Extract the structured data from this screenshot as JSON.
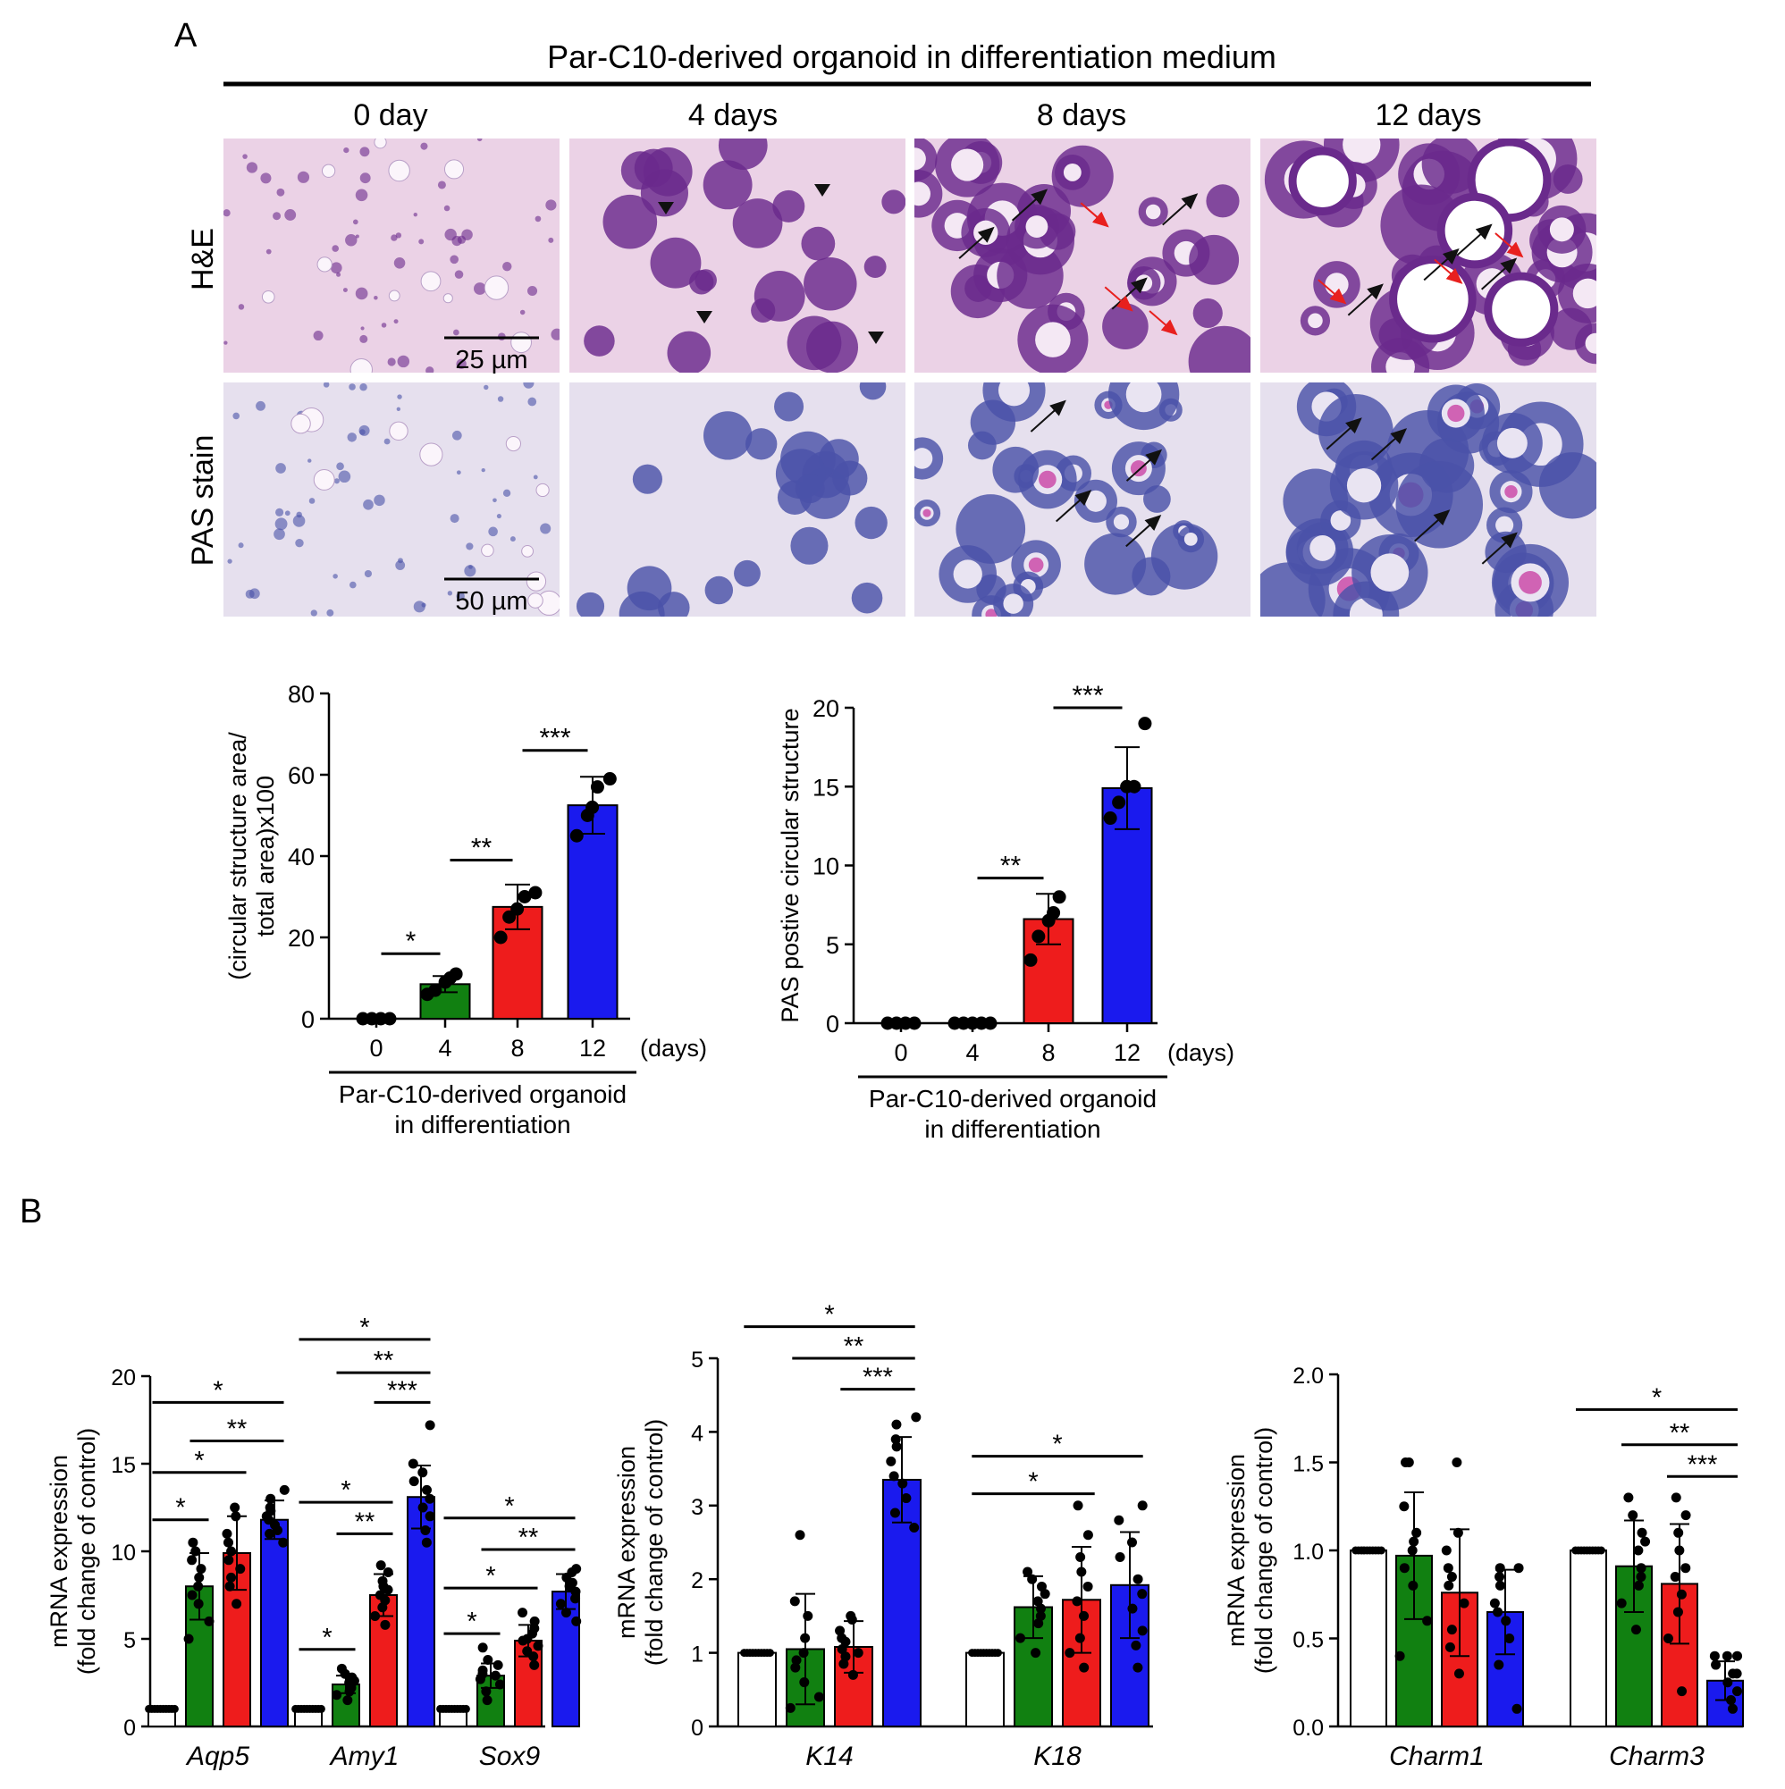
{
  "panel_a": {
    "letter": "A",
    "title": "Par-C10-derived organoid in differentiation medium",
    "columns": [
      "0 day",
      "4 days",
      "8 days",
      "12 days"
    ],
    "rows": [
      {
        "label": "H&E",
        "scale_bar": "25 µm"
      },
      {
        "label": "PAS stain",
        "scale_bar": "50 µm"
      }
    ],
    "stain_colors": {
      "he_background": "#ebd2e6",
      "he_nuclei": "#6a2a8c",
      "pas_background": "#e6e0ee",
      "pas_nuclei": "#4a52a8",
      "pas_lumen": "#c42c9a"
    }
  },
  "panel_b": {
    "letter": "B"
  },
  "colors": {
    "day0": "#ffffff",
    "day4": "#118011",
    "day8": "#ee1c1c",
    "day12": "#1a1aee"
  },
  "chart_data": [
    {
      "id": "circ-area",
      "type": "bar",
      "categories": [
        "0",
        "4",
        "8",
        "12"
      ],
      "values": [
        0,
        8.5,
        27.5,
        52.5
      ],
      "errors": [
        0,
        2,
        5.5,
        7
      ],
      "points": [
        [
          0,
          0,
          0,
          0
        ],
        [
          6,
          7,
          9,
          10,
          11
        ],
        [
          20,
          25,
          27,
          30,
          31
        ],
        [
          45,
          50,
          52,
          57,
          59
        ]
      ],
      "ylabel": "(circular structure area/ total area)x100",
      "ylabel_lines": [
        "(circular structure area/",
        "total area)x100"
      ],
      "ylim": [
        0,
        80
      ],
      "yticks": [
        0,
        20,
        40,
        60,
        80
      ],
      "xunit": "(days)",
      "xgroup_lines": [
        "Par-C10-derived organoid",
        "in differentiation"
      ],
      "significance": [
        {
          "from": 0,
          "to": 1,
          "label": "*",
          "y": 16
        },
        {
          "from": 1,
          "to": 2,
          "label": "**",
          "y": 39
        },
        {
          "from": 2,
          "to": 3,
          "label": "***",
          "y": 66
        }
      ]
    },
    {
      "id": "pas-count",
      "type": "bar",
      "categories": [
        "0",
        "4",
        "8",
        "12"
      ],
      "values": [
        0,
        0,
        6.6,
        14.9
      ],
      "errors": [
        0,
        0,
        1.6,
        2.6
      ],
      "points": [
        [
          0,
          0,
          0,
          0
        ],
        [
          0,
          0,
          0,
          0,
          0
        ],
        [
          4,
          5.5,
          6.5,
          7,
          8
        ],
        [
          13,
          14,
          15,
          15,
          19
        ]
      ],
      "ylabel": "PAS postive circular structure",
      "ylabel_lines": [
        "PAS postive circular structure"
      ],
      "ylim": [
        0,
        20
      ],
      "yticks": [
        0,
        5,
        10,
        15,
        20
      ],
      "xunit": "(days)",
      "xgroup_lines": [
        "Par-C10-derived organoid",
        "in differentiation"
      ],
      "significance": [
        {
          "from": 1,
          "to": 2,
          "label": "**",
          "y": 9.2
        },
        {
          "from": 2,
          "to": 3,
          "label": "***",
          "y": 20
        }
      ]
    },
    {
      "id": "mrna-1",
      "type": "bar",
      "genes": [
        "Aqp5",
        "Amy1",
        "Sox9"
      ],
      "series_keys": [
        "day0",
        "day4",
        "day8",
        "day12"
      ],
      "values": [
        [
          1,
          8,
          9.9,
          11.8
        ],
        [
          1,
          2.4,
          7.5,
          13.1
        ],
        [
          1,
          2.9,
          4.9,
          7.7
        ]
      ],
      "errors": [
        [
          0,
          1.9,
          2.1,
          1.1
        ],
        [
          0,
          0.5,
          1.2,
          1.8
        ],
        [
          0,
          0.7,
          0.9,
          1
        ]
      ],
      "points": [
        [
          [
            1,
            1,
            1,
            1,
            1,
            1,
            1,
            1,
            1,
            1
          ],
          [
            5,
            6,
            7,
            7.5,
            8,
            8.5,
            9,
            9.5,
            10,
            10.5
          ],
          [
            7,
            8,
            8.5,
            9,
            9.5,
            10,
            10.5,
            11,
            12,
            12.5
          ],
          [
            10.5,
            11,
            11.2,
            11.5,
            11.8,
            12,
            12.3,
            12.5,
            13,
            13.5
          ]
        ],
        [
          [
            1,
            1,
            1,
            1,
            1,
            1,
            1,
            1,
            1,
            1
          ],
          [
            1.5,
            1.8,
            2,
            2.2,
            2.4,
            2.5,
            2.6,
            2.8,
            3,
            3.3
          ],
          [
            5.8,
            6.3,
            6.8,
            7.2,
            7.5,
            7.8,
            8,
            8.3,
            8.8,
            9.2
          ],
          [
            10.5,
            11.2,
            12,
            12.5,
            13,
            13.5,
            14,
            14.5,
            15,
            17.2
          ]
        ],
        [
          [
            1,
            1,
            1,
            1,
            1,
            1,
            1,
            1,
            1,
            1
          ],
          [
            1.5,
            2,
            2.4,
            2.7,
            2.9,
            3,
            3.2,
            3.5,
            3.8,
            4.5
          ],
          [
            3.5,
            4,
            4.3,
            4.6,
            4.9,
            5,
            5.3,
            5.6,
            6,
            6.5
          ],
          [
            6,
            6.5,
            7,
            7.3,
            7.7,
            8,
            8.2,
            8.5,
            8.8,
            9
          ]
        ]
      ],
      "ylabel": "mRNA expression (fold change of control)",
      "ylabel_lines": [
        "mRNA expression",
        "(fold change of control)"
      ],
      "ylim": [
        0,
        20
      ],
      "yticks": [
        0,
        5,
        10,
        15,
        20
      ],
      "significance": [
        {
          "g": 0,
          "from": 0,
          "to": 3,
          "label": "*",
          "y": 18.5
        },
        {
          "g": 0,
          "from": 1,
          "to": 3,
          "label": "**",
          "y": 16.3
        },
        {
          "g": 0,
          "from": 0,
          "to": 2,
          "label": "*",
          "y": 14.5
        },
        {
          "g": 0,
          "from": 0,
          "to": 1,
          "label": "*",
          "y": 11.8
        },
        {
          "g": 1,
          "from": 0,
          "to": 3,
          "label": "*",
          "y": 22.1
        },
        {
          "g": 1,
          "from": 1,
          "to": 3,
          "label": "**",
          "y": 20.2
        },
        {
          "g": 1,
          "from": 2,
          "to": 3,
          "label": "***",
          "y": 18.5
        },
        {
          "g": 1,
          "from": 0,
          "to": 2,
          "label": "*",
          "y": 12.8
        },
        {
          "g": 1,
          "from": 1,
          "to": 2,
          "label": "**",
          "y": 11
        },
        {
          "g": 1,
          "from": 0,
          "to": 1,
          "label": "*",
          "y": 4.4
        },
        {
          "g": 2,
          "from": 0,
          "to": 3,
          "label": "*",
          "y": 11.9
        },
        {
          "g": 2,
          "from": 1,
          "to": 3,
          "label": "**",
          "y": 10.1
        },
        {
          "g": 2,
          "from": 0,
          "to": 2,
          "label": "*",
          "y": 7.9
        },
        {
          "g": 2,
          "from": 0,
          "to": 1,
          "label": "*",
          "y": 5.3
        }
      ]
    },
    {
      "id": "mrna-2",
      "type": "bar",
      "genes": [
        "K14",
        "K18"
      ],
      "series_keys": [
        "day0",
        "day4",
        "day8",
        "day12"
      ],
      "values": [
        [
          1,
          1.05,
          1.08,
          3.35
        ],
        [
          1,
          1.62,
          1.72,
          1.92
        ]
      ],
      "errors": [
        [
          0,
          0.75,
          0.35,
          0.58
        ],
        [
          0,
          0.42,
          0.72,
          0.72
        ]
      ],
      "points": [
        [
          [
            1,
            1,
            1,
            1,
            1,
            1,
            1,
            1,
            1,
            1
          ],
          [
            0.25,
            0.4,
            0.6,
            0.8,
            1,
            1.2,
            1.5,
            1.7,
            2.6,
            0.9
          ],
          [
            0.7,
            0.85,
            0.95,
            1,
            1.05,
            1.15,
            1.2,
            1.3,
            1.45,
            1.5
          ],
          [
            2.7,
            2.9,
            3.1,
            3.3,
            3.4,
            3.6,
            3.8,
            3.9,
            4.1,
            4.2
          ]
        ],
        [
          [
            1,
            1,
            1,
            1,
            1,
            1,
            1,
            1,
            1,
            1
          ],
          [
            1,
            1.2,
            1.4,
            1.5,
            1.6,
            1.7,
            1.8,
            1.9,
            2,
            2.1
          ],
          [
            0.8,
            1,
            1.2,
            1.5,
            1.7,
            1.9,
            2.1,
            2.3,
            2.6,
            3
          ],
          [
            0.8,
            1.1,
            1.3,
            1.6,
            1.8,
            2,
            2.3,
            2.5,
            2.8,
            3
          ]
        ]
      ],
      "ylabel": "mRNA expression (fold change of control)",
      "ylabel_lines": [
        "mRNA expression",
        "(fold change of control)"
      ],
      "ylim": [
        0,
        5
      ],
      "yticks": [
        0,
        1,
        2,
        3,
        4,
        5
      ],
      "significance": [
        {
          "g": 0,
          "from": 0,
          "to": 3,
          "label": "*",
          "y": 5.43
        },
        {
          "g": 0,
          "from": 1,
          "to": 3,
          "label": "**",
          "y": 5.0
        },
        {
          "g": 0,
          "from": 2,
          "to": 3,
          "label": "***",
          "y": 4.58
        },
        {
          "g": 1,
          "from": 0,
          "to": 3,
          "label": "*",
          "y": 3.67
        },
        {
          "g": 1,
          "from": 0,
          "to": 2,
          "label": "*",
          "y": 3.16
        }
      ]
    },
    {
      "id": "mrna-3",
      "type": "bar",
      "genes": [
        "Charm1",
        "Charm3"
      ],
      "series_keys": [
        "day0",
        "day4",
        "day8",
        "day12"
      ],
      "values": [
        [
          1,
          0.97,
          0.76,
          0.65
        ],
        [
          1,
          0.91,
          0.81,
          0.26
        ]
      ],
      "errors": [
        [
          0,
          0.36,
          0.36,
          0.24
        ],
        [
          0,
          0.26,
          0.34,
          0.11
        ]
      ],
      "points": [
        [
          [
            1,
            1,
            1,
            1,
            1,
            1,
            1,
            1,
            1,
            1
          ],
          [
            0.4,
            0.6,
            0.8,
            0.9,
            1,
            1.05,
            1.1,
            1.25,
            1.5,
            1.5
          ],
          [
            0.3,
            0.45,
            0.55,
            0.7,
            0.8,
            0.85,
            0.9,
            1,
            1.1,
            1.5
          ],
          [
            0.1,
            0.35,
            0.5,
            0.6,
            0.65,
            0.7,
            0.8,
            0.85,
            0.9,
            0.9
          ]
        ],
        [
          [
            1,
            1,
            1,
            1,
            1,
            1,
            1,
            1,
            1,
            1
          ],
          [
            0.55,
            0.7,
            0.8,
            0.85,
            0.9,
            1,
            1.05,
            1.1,
            1.2,
            1.3
          ],
          [
            0.2,
            0.5,
            0.65,
            0.75,
            0.85,
            0.9,
            1,
            1.1,
            1.2,
            1.3
          ],
          [
            0.1,
            0.15,
            0.2,
            0.25,
            0.3,
            0.3,
            0.35,
            0.4,
            0.4,
            0.4
          ]
        ]
      ],
      "ylabel": "mRNA expression (fold change of control)",
      "ylabel_lines": [
        "mRNA expression",
        "(fold change of control)"
      ],
      "ylim": [
        0,
        2.0
      ],
      "yticks": [
        "0.0",
        "0.5",
        "1.0",
        "1.5",
        "2.0"
      ],
      "significance": [
        {
          "g": 1,
          "from": 0,
          "to": 3,
          "label": "*",
          "y": 1.8
        },
        {
          "g": 1,
          "from": 1,
          "to": 3,
          "label": "**",
          "y": 1.6
        },
        {
          "g": 1,
          "from": 2,
          "to": 3,
          "label": "***",
          "y": 1.42
        }
      ]
    }
  ]
}
